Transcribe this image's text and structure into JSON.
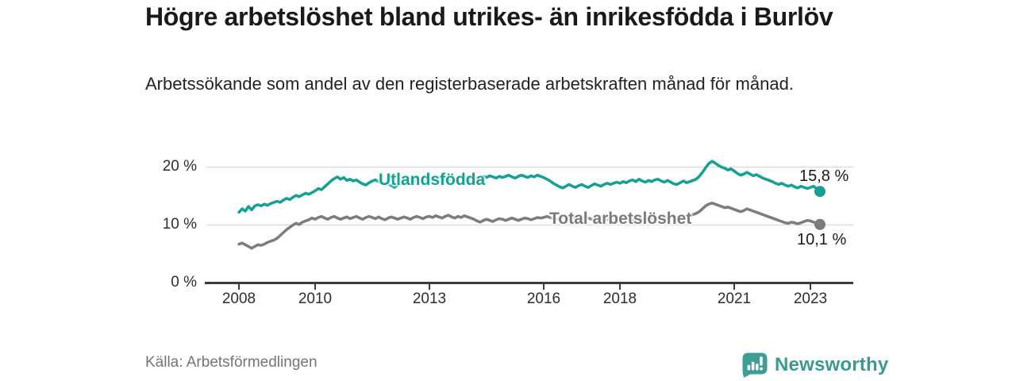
{
  "header": {
    "title": "Högre arbetslöshet bland utrikes- än inrikesfödda i Burlöv",
    "subtitle": "Arbetssökande som andel av den registerbaserade arbetskraften månad för månad."
  },
  "chart_data": {
    "type": "line",
    "title": "Högre arbetslöshet bland utrikes- än inrikesfödda i Burlöv",
    "x_unit": "månad",
    "x_start": "2008-01",
    "x_end": "2023-04",
    "x_tick_labels": [
      "2008",
      "2010",
      "2013",
      "2016",
      "2018",
      "2021",
      "2023"
    ],
    "y_tick_labels": [
      "0 %",
      "10 %",
      "20 %"
    ],
    "ylim": [
      0,
      22
    ],
    "grid": "horizontal",
    "legend_position": "inline-labels",
    "series": [
      {
        "name": "Utlandsfödda",
        "color": "#14a092",
        "end_label": "15,8 %",
        "end_value": 15.8,
        "values": [
          12.2,
          12.8,
          12.4,
          13.2,
          12.6,
          13.3,
          13.5,
          13.3,
          13.6,
          13.4,
          13.7,
          13.9,
          14.1,
          13.9,
          14.3,
          14.6,
          14.4,
          14.8,
          15.1,
          14.9,
          15.2,
          15.5,
          15.3,
          15.6,
          15.9,
          16.3,
          16.1,
          16.6,
          17.1,
          17.6,
          18.0,
          18.3,
          17.9,
          18.2,
          17.7,
          17.9,
          17.6,
          17.8,
          17.4,
          17.1,
          16.9,
          17.3,
          17.6,
          17.8,
          17.5,
          17.2,
          16.9,
          17.1,
          16.8,
          16.5,
          16.9,
          17.2,
          17.0,
          17.4,
          17.6,
          17.4,
          17.7,
          17.5,
          17.8,
          17.6,
          17.8,
          18.0,
          17.7,
          17.9,
          18.1,
          17.8,
          18.0,
          17.8,
          17.6,
          17.9,
          18.1,
          18.0,
          18.2,
          18.4,
          18.1,
          17.9,
          18.1,
          18.4,
          18.2,
          18.5,
          18.3,
          18.1,
          18.4,
          18.2,
          18.4,
          18.6,
          18.3,
          18.1,
          18.4,
          18.6,
          18.4,
          18.2,
          18.5,
          18.3,
          18.6,
          18.4,
          18.2,
          17.9,
          17.6,
          17.2,
          16.9,
          16.6,
          16.4,
          16.7,
          17.0,
          16.7,
          16.5,
          16.8,
          17.0,
          16.7,
          16.5,
          16.8,
          17.1,
          16.9,
          16.7,
          17.0,
          17.2,
          17.0,
          17.2,
          17.4,
          17.2,
          17.5,
          17.3,
          17.6,
          17.8,
          17.5,
          17.9,
          17.6,
          17.4,
          17.7,
          17.5,
          17.8,
          17.9,
          17.6,
          17.4,
          17.7,
          17.4,
          17.1,
          17.0,
          17.3,
          17.6,
          17.3,
          17.5,
          17.7,
          17.9,
          18.4,
          19.1,
          19.9,
          20.6,
          21.0,
          20.7,
          20.3,
          20.0,
          19.8,
          19.5,
          19.7,
          19.3,
          18.9,
          18.6,
          18.8,
          19.1,
          18.8,
          18.5,
          18.7,
          18.4,
          18.1,
          17.9,
          17.7,
          17.5,
          17.2,
          17.0,
          17.2,
          16.9,
          16.7,
          16.9,
          16.6,
          16.4,
          16.7,
          16.5,
          16.3,
          16.5,
          16.7,
          16.2,
          15.8
        ]
      },
      {
        "name": "Total arbetslöshet",
        "color": "#7c7c7c",
        "end_label": "10,1 %",
        "end_value": 10.1,
        "values": [
          6.7,
          6.9,
          6.6,
          6.3,
          6.0,
          6.3,
          6.6,
          6.5,
          6.7,
          7.0,
          7.2,
          7.4,
          7.7,
          8.2,
          8.7,
          9.2,
          9.6,
          10.0,
          10.3,
          10.1,
          10.5,
          10.7,
          10.9,
          11.2,
          11.0,
          11.3,
          11.5,
          11.2,
          11.0,
          11.3,
          11.5,
          11.2,
          11.0,
          11.2,
          11.4,
          11.1,
          11.3,
          11.5,
          11.2,
          11.0,
          11.3,
          11.5,
          11.3,
          11.1,
          11.4,
          11.1,
          10.9,
          11.2,
          11.4,
          11.2,
          11.0,
          11.2,
          11.4,
          11.2,
          11.0,
          11.3,
          11.5,
          11.3,
          11.1,
          11.4,
          11.5,
          11.3,
          11.6,
          11.4,
          11.2,
          11.5,
          11.7,
          11.4,
          11.2,
          11.5,
          11.3,
          11.6,
          11.4,
          11.2,
          11.0,
          10.7,
          10.5,
          10.8,
          11.0,
          10.8,
          10.6,
          10.9,
          11.1,
          11.0,
          10.8,
          11.0,
          11.2,
          11.0,
          10.8,
          11.0,
          11.2,
          11.1,
          10.9,
          11.1,
          11.3,
          11.2,
          11.3,
          11.5,
          11.3,
          11.1,
          11.0,
          11.2,
          11.4,
          11.2,
          11.0,
          11.2,
          11.3,
          11.1,
          11.2,
          11.4,
          11.2,
          11.0,
          10.9,
          11.1,
          11.3,
          11.1,
          10.9,
          11.1,
          11.2,
          11.0,
          11.1,
          11.3,
          11.1,
          10.9,
          10.8,
          11.0,
          11.2,
          11.0,
          10.9,
          11.1,
          11.2,
          11.1,
          11.2,
          11.4,
          11.2,
          11.0,
          11.2,
          11.4,
          11.3,
          11.1,
          11.3,
          11.5,
          11.6,
          11.8,
          12.0,
          12.3,
          12.8,
          13.3,
          13.6,
          13.8,
          13.6,
          13.4,
          13.2,
          13.0,
          13.1,
          12.9,
          12.7,
          12.5,
          12.3,
          12.5,
          12.8,
          12.6,
          12.4,
          12.2,
          12.0,
          11.8,
          11.6,
          11.4,
          11.2,
          11.0,
          10.8,
          10.6,
          10.4,
          10.3,
          10.5,
          10.4,
          10.2,
          10.4,
          10.6,
          10.8,
          10.7,
          10.5,
          10.3,
          10.1
        ]
      }
    ],
    "colors": {
      "accent_teal": "#14a092",
      "neutral_gray": "#7c7c7c",
      "grid": "#d9d9d9",
      "axis": "#3c3c3c"
    }
  },
  "footer": {
    "source": "Källa: Arbetsförmedlingen",
    "brand": "Newsworthy"
  }
}
